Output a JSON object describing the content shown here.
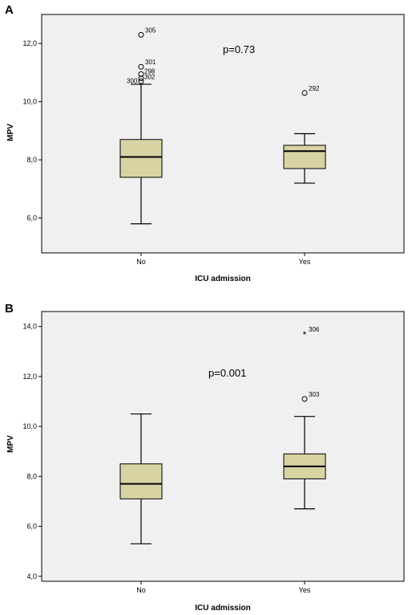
{
  "chart_data": [
    {
      "type": "boxplot",
      "panel_label": "A",
      "xlabel": "ICU admission",
      "ylabel": "MPV",
      "categories": [
        "No",
        "Yes"
      ],
      "ylim": [
        4.8,
        13.0
      ],
      "yticks": [
        "6,0",
        "8,0",
        "10,0",
        "12,0"
      ],
      "ytick_values": [
        6,
        8,
        10,
        12
      ],
      "annotation": "p=0.73",
      "boxes": [
        {
          "category": "No",
          "min": 5.8,
          "q1": 7.4,
          "median": 8.1,
          "q3": 8.7,
          "max": 10.6,
          "outliers": [
            {
              "value": 12.3,
              "label": "305",
              "marker": "circle"
            },
            {
              "value": 11.2,
              "label": "301",
              "marker": "circle"
            },
            {
              "value": 10.95,
              "label": "298",
              "marker": "circle"
            },
            {
              "value": 10.8,
              "label": "302",
              "marker": "circle"
            },
            {
              "value": 10.7,
              "label": "300",
              "marker": "circle"
            }
          ]
        },
        {
          "category": "Yes",
          "min": 7.2,
          "q1": 7.7,
          "median": 8.3,
          "q3": 8.5,
          "max": 8.9,
          "outliers": [
            {
              "value": 10.3,
              "label": "292",
              "marker": "circle"
            }
          ]
        }
      ]
    },
    {
      "type": "boxplot",
      "panel_label": "B",
      "xlabel": "ICU admission",
      "ylabel": "MPV",
      "categories": [
        "No",
        "Yes"
      ],
      "ylim": [
        3.8,
        14.6
      ],
      "yticks": [
        "4,0",
        "6,0",
        "8,0",
        "10,0",
        "12,0",
        "14,0"
      ],
      "ytick_values": [
        4,
        6,
        8,
        10,
        12,
        14
      ],
      "annotation": "p=0.001",
      "boxes": [
        {
          "category": "No",
          "min": 5.3,
          "q1": 7.1,
          "median": 7.7,
          "q3": 8.5,
          "max": 10.5,
          "outliers": []
        },
        {
          "category": "Yes",
          "min": 6.7,
          "q1": 7.9,
          "median": 8.4,
          "q3": 8.9,
          "max": 10.4,
          "outliers": [
            {
              "value": 13.7,
              "label": "306",
              "marker": "star"
            },
            {
              "value": 11.1,
              "label": "303",
              "marker": "circle"
            }
          ]
        }
      ]
    }
  ]
}
